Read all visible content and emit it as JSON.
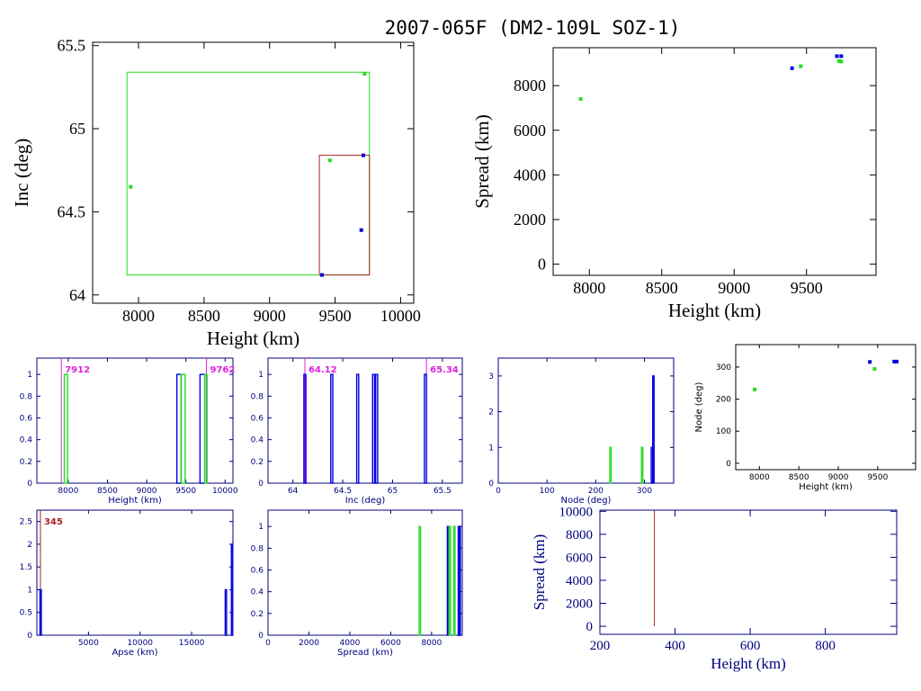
{
  "figure_title": "2007-065F (DM2-109L SOZ-1)",
  "colors": {
    "black": "#000000",
    "navy": "#00007f",
    "blue": "#0000dd",
    "green": "#22dd22",
    "red": "#aa2222",
    "magenta": "#dd22dd"
  },
  "chart_data": [
    {
      "id": "inc_height",
      "type": "scatter",
      "title": "",
      "xlabel": "Height (km)",
      "ylabel": "Inc (deg)",
      "xlim": [
        7650,
        10100
      ],
      "ylim": [
        63.95,
        65.52
      ],
      "xticks": [
        8000,
        8500,
        9000,
        9500,
        10000
      ],
      "yticks": [
        64,
        64.5,
        65,
        65.5
      ],
      "ytick_labels": [
        "64",
        "64.5",
        "65",
        "65.5"
      ],
      "axis_color": "black",
      "rects": [
        {
          "name": "green-box",
          "x0": 7912,
          "x1": 9762,
          "y0": 64.12,
          "y1": 65.34,
          "color": "green"
        },
        {
          "name": "red-box",
          "x0": 9380,
          "x1": 9762,
          "y0": 64.12,
          "y1": 64.84,
          "color": "red"
        }
      ],
      "series": [
        {
          "color": "green",
          "points": [
            [
              7940,
              64.65
            ],
            [
              9460,
              64.81
            ],
            [
              9725,
              65.33
            ]
          ]
        },
        {
          "color": "blue",
          "points": [
            [
              9715,
              64.84
            ],
            [
              9700,
              64.39
            ],
            [
              9400,
              64.12
            ]
          ]
        }
      ]
    },
    {
      "id": "spread_height",
      "type": "scatter",
      "title": "",
      "xlabel": "Height (km)",
      "ylabel": "Spread (km)",
      "xlim": [
        7750,
        9980
      ],
      "ylim": [
        -500,
        9700
      ],
      "xticks": [
        8000,
        8500,
        9000,
        9500
      ],
      "yticks": [
        0,
        2000,
        4000,
        6000,
        8000
      ],
      "axis_color": "black",
      "series": [
        {
          "color": "green",
          "points": [
            [
              7940,
              7400
            ],
            [
              9460,
              8870
            ],
            [
              9725,
              9100
            ],
            [
              9740,
              9080
            ]
          ]
        },
        {
          "color": "blue",
          "points": [
            [
              9400,
              8780
            ],
            [
              9710,
              9320
            ],
            [
              9740,
              9320
            ]
          ]
        }
      ]
    },
    {
      "id": "height_hist",
      "type": "bar",
      "title": "",
      "xlabel": "Height (km)",
      "ylabel": "",
      "xlim": [
        7600,
        10100
      ],
      "ylim": [
        0,
        1.15
      ],
      "xticks": [
        8000,
        8500,
        9000,
        9500,
        10000
      ],
      "yticks": [
        0,
        0.2,
        0.4,
        0.6,
        0.8,
        1
      ],
      "axis_color": "navy",
      "bars": [
        {
          "x0": 7950,
          "x1": 7990,
          "value": 1,
          "color": "green"
        },
        {
          "x0": 9385,
          "x1": 9440,
          "value": 1,
          "color": "blue"
        },
        {
          "x0": 9440,
          "x1": 9490,
          "value": 1,
          "color": "green"
        },
        {
          "x0": 9680,
          "x1": 9740,
          "value": 1,
          "color": "blue"
        },
        {
          "x0": 9740,
          "x1": 9770,
          "value": 1,
          "color": "green"
        }
      ],
      "vlines": [
        {
          "x": 7912,
          "color": "magenta"
        },
        {
          "x": 9762,
          "color": "magenta"
        }
      ],
      "annotations": [
        {
          "text": "7912",
          "x": 7912,
          "anchor": "start",
          "color": "magenta"
        },
        {
          "text": "9762",
          "x": 9762,
          "anchor": "start",
          "color": "magenta"
        }
      ]
    },
    {
      "id": "inc_hist",
      "type": "bar",
      "title": "",
      "xlabel": "Inc (deg)",
      "ylabel": "",
      "xlim": [
        63.75,
        65.7
      ],
      "ylim": [
        0,
        1.15
      ],
      "xticks": [
        64,
        64.5,
        65,
        65.5
      ],
      "xtick_labels": [
        "64",
        "64.5",
        "65",
        "65.5"
      ],
      "yticks": [
        0,
        0.2,
        0.4,
        0.6,
        0.8,
        1
      ],
      "axis_color": "navy",
      "bars": [
        {
          "x0": 64.11,
          "x1": 64.13,
          "value": 1,
          "color": "blue"
        },
        {
          "x0": 64.38,
          "x1": 64.4,
          "value": 1,
          "color": "blue"
        },
        {
          "x0": 64.64,
          "x1": 64.66,
          "value": 1,
          "color": "blue"
        },
        {
          "x0": 64.8,
          "x1": 64.82,
          "value": 1,
          "color": "blue"
        },
        {
          "x0": 64.83,
          "x1": 64.85,
          "value": 1,
          "color": "blue"
        },
        {
          "x0": 65.32,
          "x1": 65.34,
          "value": 1,
          "color": "blue"
        }
      ],
      "vlines": [
        {
          "x": 64.12,
          "color": "magenta"
        },
        {
          "x": 65.34,
          "color": "magenta"
        }
      ],
      "annotations": [
        {
          "text": "64.12",
          "x": 64.12,
          "anchor": "start",
          "color": "magenta"
        },
        {
          "text": "65.34",
          "x": 65.34,
          "anchor": "start",
          "color": "magenta"
        }
      ]
    },
    {
      "id": "node_hist",
      "type": "bar",
      "title": "",
      "xlabel": "Node (deg)",
      "ylabel": "",
      "xlim": [
        0,
        360
      ],
      "ylim": [
        0,
        3.5
      ],
      "xticks": [
        0,
        100,
        200,
        300
      ],
      "yticks": [
        0,
        1,
        2,
        3
      ],
      "axis_color": "navy",
      "bars": [
        {
          "x0": 229,
          "x1": 231,
          "value": 1,
          "color": "green"
        },
        {
          "x0": 294,
          "x1": 296,
          "value": 1,
          "color": "green"
        },
        {
          "x0": 314,
          "x1": 316,
          "value": 1,
          "color": "blue"
        },
        {
          "x0": 317,
          "x1": 319,
          "value": 3,
          "color": "blue"
        }
      ]
    },
    {
      "id": "node_height",
      "type": "scatter",
      "title": "",
      "xlabel": "Height (km)",
      "ylabel": "Node (deg)",
      "xlim": [
        7700,
        9980
      ],
      "ylim": [
        -20,
        370
      ],
      "xticks": [
        8000,
        8500,
        9000,
        9500
      ],
      "yticks": [
        0,
        100,
        200,
        300
      ],
      "axis_color": "black",
      "series": [
        {
          "color": "green",
          "points": [
            [
              7940,
              230
            ],
            [
              9460,
              294
            ]
          ]
        },
        {
          "color": "blue",
          "points": [
            [
              9400,
              316
            ],
            [
              9710,
              317
            ],
            [
              9740,
              317
            ]
          ]
        }
      ]
    },
    {
      "id": "apse_hist",
      "type": "bar",
      "title": "",
      "xlabel": "Apse (km)",
      "ylabel": "",
      "xlim": [
        0,
        19000
      ],
      "ylim": [
        0,
        2.75
      ],
      "xticks": [
        5000,
        10000,
        15000
      ],
      "yticks": [
        0,
        0.5,
        1,
        1.5,
        2,
        2.5
      ],
      "ytick_labels": [
        "0",
        "0.5",
        "1",
        "1.5",
        "2",
        "2.5"
      ],
      "axis_color": "navy",
      "bars": [
        {
          "x0": 300,
          "x1": 380,
          "value": 1,
          "color": "blue"
        },
        {
          "x0": 18250,
          "x1": 18330,
          "value": 1,
          "color": "blue"
        },
        {
          "x0": 18850,
          "x1": 18930,
          "value": 2,
          "color": "blue"
        }
      ],
      "vlines": [
        {
          "x": 345,
          "color": "red"
        }
      ],
      "annotations": [
        {
          "text": "345",
          "x": 345,
          "anchor": "start",
          "color": "red"
        }
      ]
    },
    {
      "id": "spread_hist",
      "type": "bar",
      "title": "",
      "xlabel": "Spread (km)",
      "ylabel": "",
      "xlim": [
        0,
        9500
      ],
      "ylim": [
        0,
        1.15
      ],
      "xticks": [
        0,
        2000,
        4000,
        6000,
        8000
      ],
      "yticks": [
        0,
        0.2,
        0.4,
        0.6,
        0.8,
        1
      ],
      "axis_color": "navy",
      "bars": [
        {
          "x0": 7390,
          "x1": 7410,
          "value": 1,
          "color": "green"
        },
        {
          "x0": 8770,
          "x1": 8790,
          "value": 1,
          "color": "blue"
        },
        {
          "x0": 8860,
          "x1": 8880,
          "value": 1,
          "color": "green"
        },
        {
          "x0": 9080,
          "x1": 9100,
          "value": 1,
          "color": "green"
        },
        {
          "x0": 9300,
          "x1": 9320,
          "value": 1,
          "color": "blue"
        },
        {
          "x0": 9340,
          "x1": 9360,
          "value": 1,
          "color": "blue"
        }
      ]
    },
    {
      "id": "spread_low_height",
      "type": "line",
      "title": "",
      "xlabel": "Height (km)",
      "ylabel": "Spread (km)",
      "xlim": [
        200,
        990
      ],
      "ylim": [
        -700,
        10100
      ],
      "xticks": [
        200,
        400,
        600,
        800
      ],
      "yticks": [
        0,
        2000,
        4000,
        6000,
        8000,
        10000
      ],
      "axis_color": "navy",
      "vlines": [
        {
          "x": 345,
          "y0": 0,
          "y1": 10100,
          "color": "red"
        }
      ]
    }
  ]
}
